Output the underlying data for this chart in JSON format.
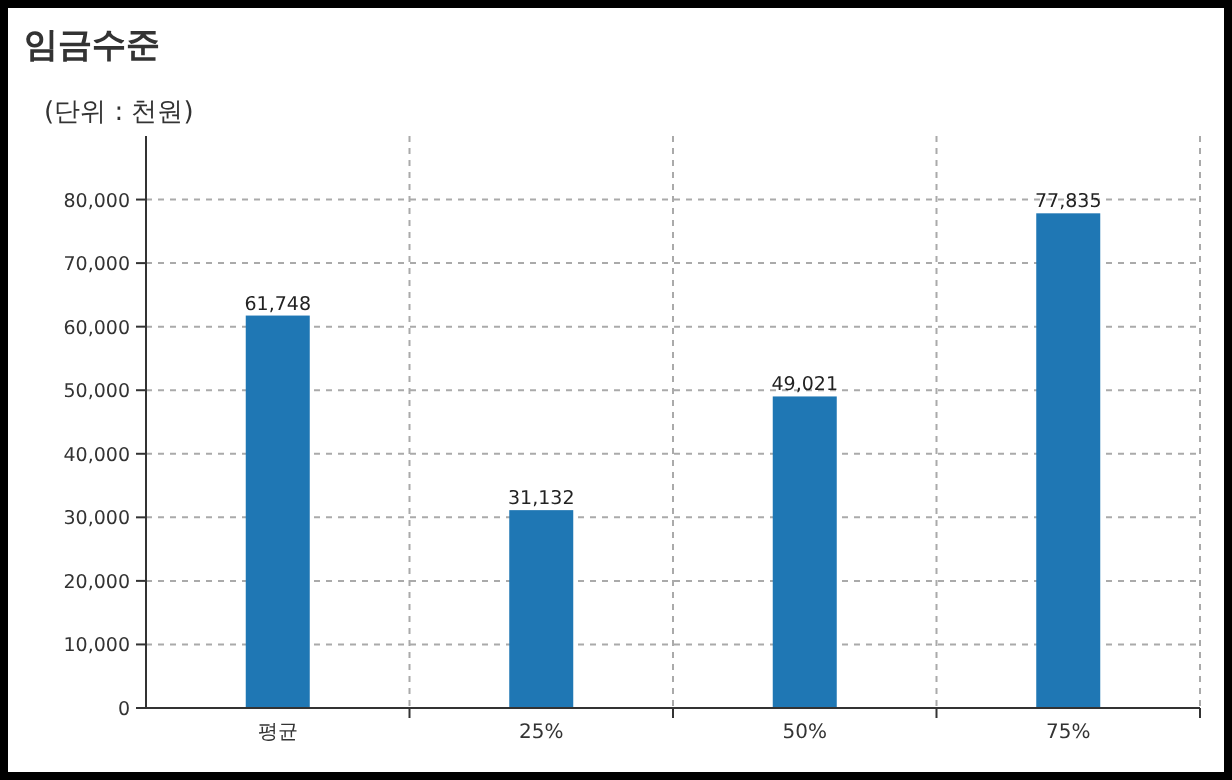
{
  "chart_data": {
    "type": "bar",
    "title": "임금수준",
    "ylabel": "(단위 : 천원)",
    "categories": [
      "평균",
      "25%",
      "50%",
      "75%"
    ],
    "series": [
      {
        "color": "#1f77b4",
        "values": [
          61748,
          31132,
          49021,
          77835
        ]
      }
    ],
    "value_labels": [
      "61,748",
      "31,132",
      "49,021",
      "77,835"
    ],
    "ylim": [
      0,
      90000
    ],
    "yticks": [
      0,
      {
        "value": 10000,
        "label": "10,000"
      },
      {
        "value": 20000,
        "label": "20,000"
      },
      {
        "value": 30000,
        "label": "30,000"
      },
      {
        "value": 40000,
        "label": "40,000"
      },
      {
        "value": 50000,
        "label": "50,000"
      },
      {
        "value": 60000,
        "label": "60,000"
      },
      {
        "value": 70000,
        "label": "70,000"
      },
      {
        "value": 80000,
        "label": "80,000"
      }
    ],
    "grid": true
  }
}
